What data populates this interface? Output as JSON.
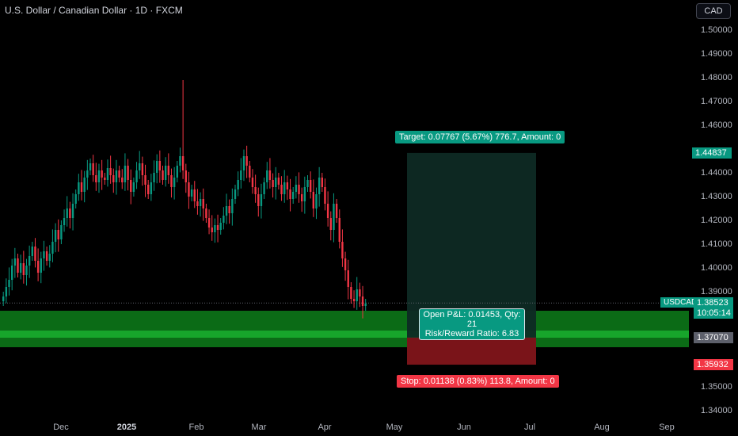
{
  "header": {
    "title": "U.S. Dollar / Canadian Dollar · 1D · FXCM",
    "currency_button": "CAD"
  },
  "price_axis": {
    "labels": [
      "1.50000",
      "1.49000",
      "1.48000",
      "1.47000",
      "1.46000",
      "1.44000",
      "1.43000",
      "1.42000",
      "1.41000",
      "1.40000",
      "1.39000",
      "1.35000",
      "1.34000"
    ],
    "values": [
      1.5,
      1.49,
      1.48,
      1.47,
      1.46,
      1.44,
      1.43,
      1.42,
      1.41,
      1.4,
      1.39,
      1.35,
      1.34
    ]
  },
  "time_axis": {
    "labels": [
      "Dec",
      "2025",
      "Feb",
      "Mar",
      "Apr",
      "May",
      "Jun",
      "Jul",
      "Aug",
      "Sep"
    ],
    "strong": [
      false,
      true,
      false,
      false,
      false,
      false,
      false,
      false,
      false,
      false
    ]
  },
  "tags": {
    "target_price": "1.44837",
    "symbol": "USDCAD",
    "current_price": "1.38523",
    "countdown": "10:05:14",
    "entry_price": "1.37070",
    "stop_price": "1.35932"
  },
  "position": {
    "target_label": "Target: 0.07767 (5.67%) 776.7, Amount: 0",
    "stop_label": "Stop: 0.01138 (0.83%) 113.8, Amount: 0",
    "pnl_line1": "Open P&L: 0.01453, Qty: 21",
    "pnl_line2": "Risk/Reward Ratio: 6.83",
    "target": 1.44837,
    "entry": 1.3707,
    "stop": 1.35932,
    "current": 1.38523
  },
  "colors": {
    "up": "#089981",
    "down": "#f23645",
    "profit_zone": "#0e2a24",
    "loss_zone": "#7a1419",
    "green_band": "#0b6b16",
    "green_band_light": "#17a52b",
    "tag_green": "#089981",
    "tag_red": "#f23645",
    "tag_gray": "#5d606b"
  },
  "chart_data": {
    "type": "candlestick",
    "symbol": "USDCAD",
    "timeframe": "1D",
    "x_labels": [
      "Dec",
      "2025",
      "Feb",
      "Mar",
      "Apr",
      "May",
      "Jun",
      "Jul",
      "Aug",
      "Sep"
    ],
    "ylim": [
      1.34,
      1.5
    ],
    "close_path": [
      1.388,
      1.392,
      1.395,
      1.401,
      1.404,
      1.398,
      1.402,
      1.397,
      1.401,
      1.405,
      1.409,
      1.403,
      1.398,
      1.404,
      1.407,
      1.403,
      1.406,
      1.411,
      1.416,
      1.412,
      1.418,
      1.421,
      1.425,
      1.421,
      1.427,
      1.431,
      1.436,
      1.432,
      1.438,
      1.441,
      1.444,
      1.439,
      1.436,
      1.441,
      1.438,
      1.437,
      1.442,
      1.439,
      1.436,
      1.441,
      1.438,
      1.436,
      1.443,
      1.437,
      1.432,
      1.436,
      1.441,
      1.444,
      1.439,
      1.435,
      1.431,
      1.436,
      1.44,
      1.445,
      1.441,
      1.437,
      1.443,
      1.439,
      1.434,
      1.438,
      1.443,
      1.447,
      1.441,
      1.436,
      1.43,
      1.433,
      1.428,
      1.426,
      1.429,
      1.425,
      1.421,
      1.417,
      1.415,
      1.418,
      1.416,
      1.419,
      1.422,
      1.426,
      1.423,
      1.429,
      1.433,
      1.437,
      1.441,
      1.447,
      1.443,
      1.438,
      1.434,
      1.431,
      1.426,
      1.431,
      1.436,
      1.441,
      1.437,
      1.434,
      1.438,
      1.435,
      1.431,
      1.436,
      1.433,
      1.429,
      1.432,
      1.435,
      1.431,
      1.428,
      1.434,
      1.437,
      1.432,
      1.425,
      1.431,
      1.438,
      1.434,
      1.427,
      1.421,
      1.416,
      1.427,
      1.421,
      1.411,
      1.404,
      1.399,
      1.392,
      1.387,
      1.386,
      1.391,
      1.388,
      1.384,
      1.385
    ],
    "annotations": {
      "high_spike": 1.479,
      "long_position": {
        "target": 1.44837,
        "entry": 1.3707,
        "stop": 1.35932
      }
    }
  }
}
